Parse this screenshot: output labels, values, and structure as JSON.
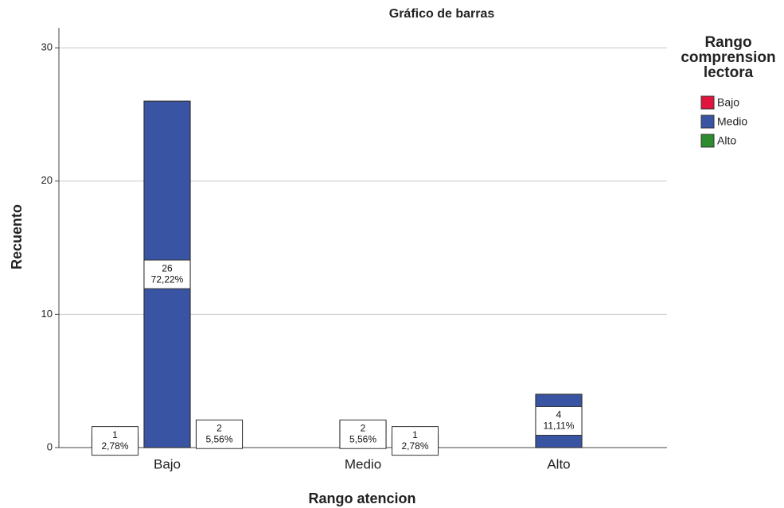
{
  "chart_data": {
    "type": "bar",
    "title": "Gráfico de barras",
    "x_label": "Rango atencion",
    "y_label": "Recuento",
    "categories": [
      "Bajo",
      "Medio",
      "Alto"
    ],
    "legend_title": "Rango comprension lectora",
    "series": [
      {
        "name": "Bajo",
        "color": "#e0143c",
        "values": [
          1,
          null,
          null
        ],
        "percent_labels": [
          "2,78%",
          null,
          null
        ]
      },
      {
        "name": "Medio",
        "color": "#3a54a4",
        "values": [
          26,
          2,
          4
        ],
        "percent_labels": [
          "72,22%",
          "5,56%",
          "11,11%"
        ]
      },
      {
        "name": "Alto",
        "color": "#2e8b2e",
        "values": [
          2,
          1,
          null
        ],
        "percent_labels": [
          "5,56%",
          "2,78%",
          null
        ]
      }
    ],
    "ylim": [
      0,
      31.5
    ],
    "yticks": [
      0,
      10,
      20,
      30
    ],
    "grid": true
  }
}
